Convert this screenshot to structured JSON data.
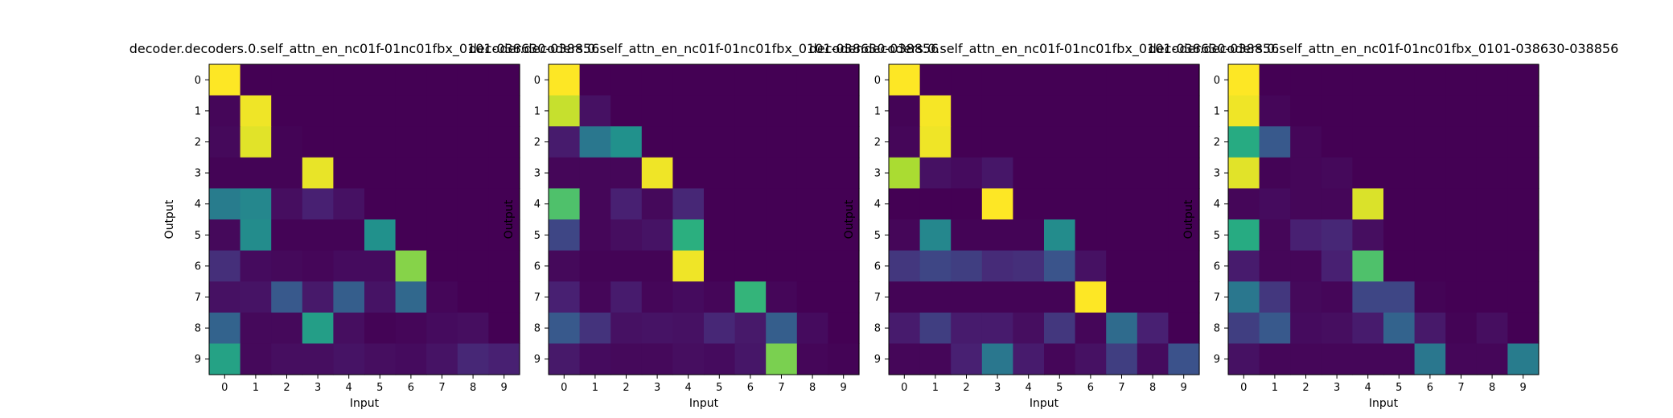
{
  "chart_data": [
    {
      "type": "heatmap",
      "title": "decoder.decoders.0.self_attn_en_nc01f-01nc01fbx_0101-038630-038856",
      "xlabel": "Input",
      "ylabel": "Output",
      "x_ticks": [
        "0",
        "1",
        "2",
        "3",
        "4",
        "5",
        "6",
        "7",
        "8",
        "9"
      ],
      "y_ticks": [
        "0",
        "1",
        "2",
        "3",
        "4",
        "5",
        "6",
        "7",
        "8",
        "9"
      ],
      "colormap": "viridis",
      "values": [
        [
          1.0,
          0.0,
          0.0,
          0.0,
          0.0,
          0.0,
          0.0,
          0.0,
          0.0,
          0.0
        ],
        [
          0.02,
          0.98,
          0.0,
          0.0,
          0.0,
          0.0,
          0.0,
          0.0,
          0.0,
          0.0
        ],
        [
          0.03,
          0.96,
          0.01,
          0.0,
          0.0,
          0.0,
          0.0,
          0.0,
          0.0,
          0.0
        ],
        [
          0.01,
          0.01,
          0.01,
          0.97,
          0.0,
          0.0,
          0.0,
          0.0,
          0.0,
          0.0
        ],
        [
          0.42,
          0.46,
          0.05,
          0.12,
          0.06,
          0.0,
          0.0,
          0.0,
          0.0,
          0.0
        ],
        [
          0.03,
          0.48,
          0.01,
          0.01,
          0.01,
          0.5,
          0.0,
          0.0,
          0.0,
          0.0
        ],
        [
          0.16,
          0.04,
          0.03,
          0.02,
          0.04,
          0.04,
          0.82,
          0.0,
          0.0,
          0.0
        ],
        [
          0.06,
          0.07,
          0.28,
          0.09,
          0.3,
          0.07,
          0.34,
          0.02,
          0.0,
          0.0
        ],
        [
          0.32,
          0.03,
          0.03,
          0.56,
          0.05,
          0.01,
          0.02,
          0.04,
          0.05,
          0.0
        ],
        [
          0.58,
          0.03,
          0.05,
          0.05,
          0.07,
          0.05,
          0.04,
          0.07,
          0.14,
          0.12
        ]
      ]
    },
    {
      "type": "heatmap",
      "title": "decoder.decoders.0.self_attn_en_nc01f-01nc01fbx_0101-038630-038856",
      "xlabel": "Input",
      "ylabel": "Output",
      "x_ticks": [
        "0",
        "1",
        "2",
        "3",
        "4",
        "5",
        "6",
        "7",
        "8",
        "9"
      ],
      "y_ticks": [
        "0",
        "1",
        "2",
        "3",
        "4",
        "5",
        "6",
        "7",
        "8",
        "9"
      ],
      "colormap": "viridis",
      "values": [
        [
          1.0,
          0.0,
          0.0,
          0.0,
          0.0,
          0.0,
          0.0,
          0.0,
          0.0,
          0.0
        ],
        [
          0.92,
          0.06,
          0.0,
          0.0,
          0.0,
          0.0,
          0.0,
          0.0,
          0.0,
          0.0
        ],
        [
          0.1,
          0.4,
          0.5,
          0.0,
          0.0,
          0.0,
          0.0,
          0.0,
          0.0,
          0.0
        ],
        [
          0.02,
          0.02,
          0.02,
          0.98,
          0.0,
          0.0,
          0.0,
          0.0,
          0.0,
          0.0
        ],
        [
          0.72,
          0.02,
          0.12,
          0.03,
          0.14,
          0.0,
          0.0,
          0.0,
          0.0,
          0.0
        ],
        [
          0.22,
          0.02,
          0.05,
          0.07,
          0.64,
          0.0,
          0.0,
          0.0,
          0.0,
          0.0
        ],
        [
          0.03,
          0.01,
          0.01,
          0.01,
          0.98,
          0.0,
          0.0,
          0.0,
          0.0,
          0.0
        ],
        [
          0.12,
          0.02,
          0.1,
          0.02,
          0.04,
          0.02,
          0.66,
          0.02,
          0.0,
          0.0
        ],
        [
          0.28,
          0.17,
          0.06,
          0.07,
          0.06,
          0.14,
          0.09,
          0.3,
          0.04,
          0.0
        ],
        [
          0.09,
          0.04,
          0.03,
          0.03,
          0.05,
          0.04,
          0.08,
          0.8,
          0.02,
          0.01
        ]
      ]
    },
    {
      "type": "heatmap",
      "title": "decoder.decoders.0.self_attn_en_nc01f-01nc01fbx_0101-038630-038856",
      "xlabel": "Input",
      "ylabel": "Output",
      "x_ticks": [
        "0",
        "1",
        "2",
        "3",
        "4",
        "5",
        "6",
        "7",
        "8",
        "9"
      ],
      "y_ticks": [
        "0",
        "1",
        "2",
        "3",
        "4",
        "5",
        "6",
        "7",
        "8",
        "9"
      ],
      "colormap": "viridis",
      "values": [
        [
          1.0,
          0.0,
          0.0,
          0.0,
          0.0,
          0.0,
          0.0,
          0.0,
          0.0,
          0.0
        ],
        [
          0.01,
          0.99,
          0.0,
          0.0,
          0.0,
          0.0,
          0.0,
          0.0,
          0.0,
          0.0
        ],
        [
          0.02,
          0.98,
          0.0,
          0.0,
          0.0,
          0.0,
          0.0,
          0.0,
          0.0,
          0.0
        ],
        [
          0.88,
          0.06,
          0.04,
          0.08,
          0.0,
          0.0,
          0.0,
          0.0,
          0.0,
          0.0
        ],
        [
          0.0,
          0.0,
          0.0,
          1.0,
          0.0,
          0.0,
          0.0,
          0.0,
          0.0,
          0.0
        ],
        [
          0.02,
          0.46,
          0.01,
          0.01,
          0.01,
          0.48,
          0.0,
          0.0,
          0.0,
          0.0
        ],
        [
          0.18,
          0.22,
          0.2,
          0.15,
          0.16,
          0.26,
          0.06,
          0.0,
          0.0,
          0.0
        ],
        [
          0.01,
          0.01,
          0.01,
          0.01,
          0.01,
          0.01,
          1.0,
          0.0,
          0.0,
          0.0
        ],
        [
          0.1,
          0.2,
          0.1,
          0.1,
          0.05,
          0.18,
          0.02,
          0.35,
          0.12,
          0.0
        ],
        [
          0.02,
          0.02,
          0.12,
          0.4,
          0.1,
          0.02,
          0.06,
          0.2,
          0.04,
          0.25
        ]
      ]
    },
    {
      "type": "heatmap",
      "title": "decoder.decoders.0.self_attn_en_nc01f-01nc01fbx_0101-038630-038856",
      "xlabel": "Input",
      "ylabel": "Output",
      "x_ticks": [
        "0",
        "1",
        "2",
        "3",
        "4",
        "5",
        "6",
        "7",
        "8",
        "9"
      ],
      "y_ticks": [
        "0",
        "1",
        "2",
        "3",
        "4",
        "5",
        "6",
        "7",
        "8",
        "9"
      ],
      "colormap": "viridis",
      "values": [
        [
          1.0,
          0.0,
          0.0,
          0.0,
          0.0,
          0.0,
          0.0,
          0.0,
          0.0,
          0.0
        ],
        [
          0.98,
          0.02,
          0.0,
          0.0,
          0.0,
          0.0,
          0.0,
          0.0,
          0.0,
          0.0
        ],
        [
          0.62,
          0.28,
          0.02,
          0.0,
          0.0,
          0.0,
          0.0,
          0.0,
          0.0,
          0.0
        ],
        [
          0.96,
          0.01,
          0.02,
          0.03,
          0.0,
          0.0,
          0.0,
          0.0,
          0.0,
          0.0
        ],
        [
          0.02,
          0.04,
          0.02,
          0.02,
          0.95,
          0.0,
          0.0,
          0.0,
          0.0,
          0.0
        ],
        [
          0.62,
          0.02,
          0.12,
          0.14,
          0.05,
          0.0,
          0.0,
          0.0,
          0.0,
          0.0
        ],
        [
          0.1,
          0.02,
          0.02,
          0.12,
          0.72,
          0.0,
          0.0,
          0.0,
          0.0,
          0.0
        ],
        [
          0.4,
          0.18,
          0.03,
          0.02,
          0.22,
          0.22,
          0.01,
          0.0,
          0.0,
          0.0
        ],
        [
          0.2,
          0.28,
          0.04,
          0.05,
          0.1,
          0.32,
          0.09,
          0.01,
          0.05,
          0.0
        ],
        [
          0.06,
          0.02,
          0.02,
          0.02,
          0.02,
          0.02,
          0.4,
          0.02,
          0.02,
          0.42
        ]
      ]
    }
  ]
}
